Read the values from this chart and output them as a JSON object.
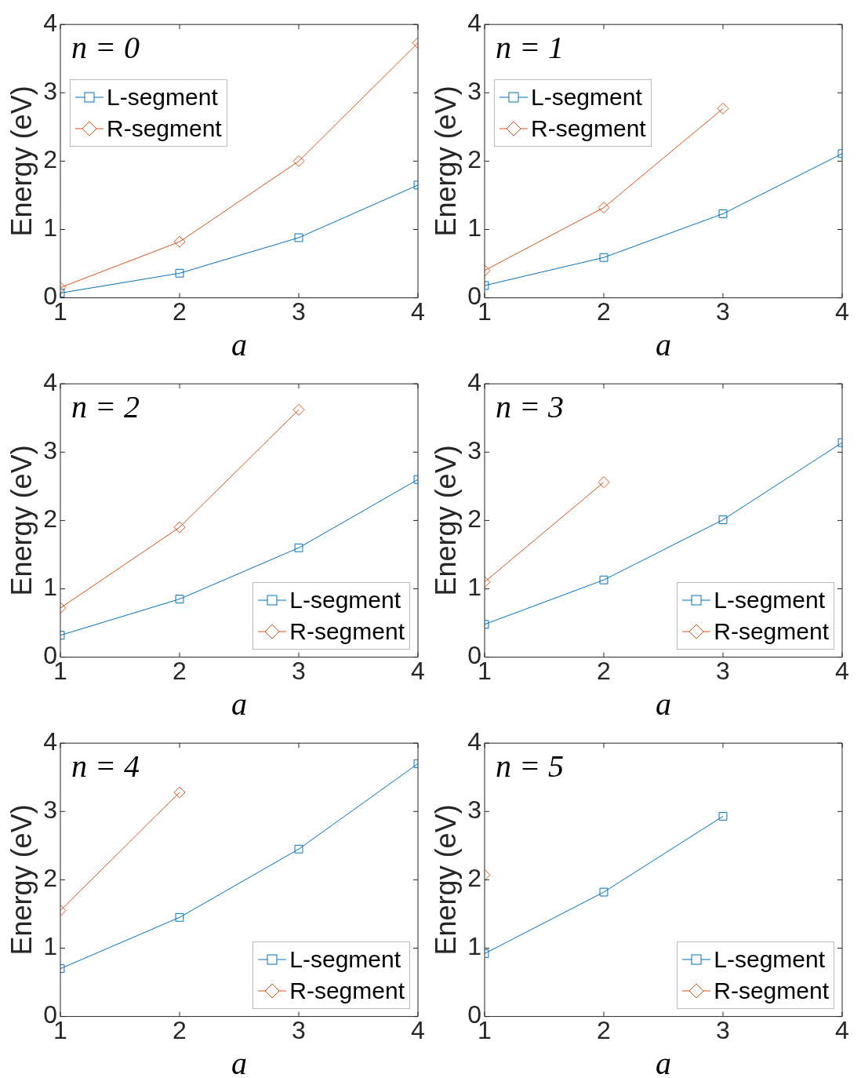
{
  "chart_data": [
    {
      "type": "line",
      "annotations": [
        "n = 0"
      ],
      "xlabel": "a",
      "ylabel": "Energy (eV)",
      "x": [
        1,
        2,
        3,
        4
      ],
      "xlim": [
        1,
        4
      ],
      "xticks": [
        1,
        2,
        3,
        4
      ],
      "ylim": [
        0,
        4
      ],
      "yticks": [
        0,
        1,
        2,
        3,
        4
      ],
      "grid": false,
      "legend": "top left",
      "line_style": "solid",
      "series": [
        {
          "name": "L-segment",
          "color": "#0072bd",
          "marker": "square",
          "values": [
            0.07,
            0.36,
            0.88,
            1.65
          ]
        },
        {
          "name": "R-segment",
          "color": "#d95319",
          "marker": "diamond",
          "values": [
            0.15,
            0.82,
            2.0,
            3.73
          ]
        }
      ]
    },
    {
      "type": "line",
      "annotations": [
        "n = 1"
      ],
      "xlabel": "a",
      "ylabel": "Energy (eV)",
      "x": [
        1,
        2,
        3,
        4
      ],
      "xlim": [
        1,
        4
      ],
      "xticks": [
        1,
        2,
        3,
        4
      ],
      "ylim": [
        0,
        4
      ],
      "yticks": [
        0,
        1,
        2,
        3,
        4
      ],
      "grid": false,
      "legend": "top left",
      "line_style": "solid",
      "series": [
        {
          "name": "L-segment",
          "color": "#0072bd",
          "marker": "square",
          "values": [
            0.18,
            0.59,
            1.23,
            2.11
          ]
        },
        {
          "name": "R-segment",
          "color": "#d95319",
          "marker": "diamond",
          "values": [
            0.4,
            1.32,
            2.77,
            null
          ]
        }
      ]
    },
    {
      "type": "line",
      "annotations": [
        "n = 2"
      ],
      "xlabel": "a",
      "ylabel": "Energy (eV)",
      "x": [
        1,
        2,
        3,
        4
      ],
      "xlim": [
        1,
        4
      ],
      "xticks": [
        1,
        2,
        3,
        4
      ],
      "ylim": [
        0,
        4
      ],
      "yticks": [
        0,
        1,
        2,
        3,
        4
      ],
      "grid": false,
      "legend": "bottom right",
      "line_style": "solid",
      "series": [
        {
          "name": "L-segment",
          "color": "#0072bd",
          "marker": "square",
          "values": [
            0.32,
            0.85,
            1.6,
            2.6
          ]
        },
        {
          "name": "R-segment",
          "color": "#d95319",
          "marker": "diamond",
          "values": [
            0.72,
            1.9,
            3.62,
            null
          ]
        }
      ]
    },
    {
      "type": "line",
      "annotations": [
        "n = 3"
      ],
      "xlabel": "a",
      "ylabel": "Energy (eV)",
      "x": [
        1,
        2,
        3,
        4
      ],
      "xlim": [
        1,
        4
      ],
      "xticks": [
        1,
        2,
        3,
        4
      ],
      "ylim": [
        0,
        4
      ],
      "yticks": [
        0,
        1,
        2,
        3,
        4
      ],
      "grid": false,
      "legend": "bottom right",
      "line_style": "solid",
      "series": [
        {
          "name": "L-segment",
          "color": "#0072bd",
          "marker": "square",
          "values": [
            0.48,
            1.13,
            2.01,
            3.14
          ]
        },
        {
          "name": "R-segment",
          "color": "#d95319",
          "marker": "diamond",
          "values": [
            1.1,
            2.56,
            null,
            null
          ]
        }
      ]
    },
    {
      "type": "line",
      "annotations": [
        "n = 4"
      ],
      "xlabel": "a",
      "ylabel": "Energy (eV)",
      "x": [
        1,
        2,
        3,
        4
      ],
      "xlim": [
        1,
        4
      ],
      "xticks": [
        1,
        2,
        3,
        4
      ],
      "ylim": [
        0,
        4
      ],
      "yticks": [
        0,
        1,
        2,
        3,
        4
      ],
      "grid": false,
      "legend": "bottom right",
      "line_style": "solid",
      "series": [
        {
          "name": "L-segment",
          "color": "#0072bd",
          "marker": "square",
          "values": [
            0.7,
            1.45,
            2.45,
            3.7
          ]
        },
        {
          "name": "R-segment",
          "color": "#d95319",
          "marker": "diamond",
          "values": [
            1.55,
            3.28,
            null,
            null
          ]
        }
      ]
    },
    {
      "type": "line",
      "annotations": [
        "n = 5"
      ],
      "xlabel": "a",
      "ylabel": "Energy (eV)",
      "x": [
        1,
        2,
        3
      ],
      "xlim": [
        1,
        4
      ],
      "xticks": [
        1,
        2,
        3,
        4
      ],
      "ylim": [
        0,
        4
      ],
      "yticks": [
        0,
        1,
        2,
        3,
        4
      ],
      "grid": false,
      "legend": "bottom right",
      "line_style": "solid",
      "series": [
        {
          "name": "L-segment",
          "color": "#0072bd",
          "marker": "square",
          "values": [
            0.92,
            1.82,
            2.93
          ]
        },
        {
          "name": "R-segment",
          "color": "#d95319",
          "marker": "diamond",
          "values": [
            2.07,
            null,
            null
          ]
        }
      ]
    }
  ]
}
